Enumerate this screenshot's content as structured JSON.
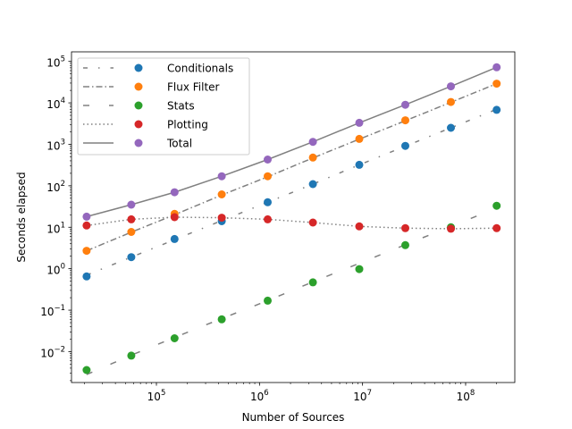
{
  "chart_data": {
    "type": "scatter",
    "title": "",
    "xlabel": "Number of Sources",
    "ylabel": "Seconds elapsed",
    "xscale": "log",
    "yscale": "log",
    "xlim": [
      15000,
      300000000
    ],
    "ylim": [
      0.0018,
      170000
    ],
    "grid": false,
    "legend_position": "top-left",
    "x": [
      21000,
      57000,
      150000,
      430000,
      1200000,
      3300000,
      9300000,
      26000000,
      72000000,
      200000000
    ],
    "series": [
      {
        "name": "Conditionals",
        "color": "#1f77b4",
        "values": [
          0.65,
          1.9,
          5.2,
          14,
          40,
          110,
          320,
          920,
          2500,
          6800
        ],
        "fit": {
          "values": [
            0.7,
            1.9,
            5.0,
            14.5,
            40,
            110,
            320,
            900,
            2500,
            7000
          ],
          "style": "dashdotdot"
        }
      },
      {
        "name": "Flux Filter",
        "color": "#ff7f0e",
        "values": [
          2.7,
          7.7,
          21,
          62,
          170,
          480,
          1350,
          3800,
          10500,
          29000
        ],
        "fit": {
          "values": [
            2.7,
            7.6,
            20,
            60,
            165,
            470,
            1330,
            3700,
            10300,
            29000
          ],
          "style": "dashdot"
        }
      },
      {
        "name": "Stats",
        "color": "#2ca02c",
        "values": [
          0.0036,
          0.008,
          0.021,
          0.06,
          0.17,
          0.47,
          0.98,
          3.7,
          10,
          33
        ],
        "fit": {
          "values": [
            0.0028,
            0.0082,
            0.022,
            0.063,
            0.17,
            0.48,
            1.35,
            3.8,
            10.5,
            29
          ],
          "style": "dashed"
        }
      },
      {
        "name": "Plotting",
        "color": "#d62728",
        "values": [
          11,
          15.5,
          17.5,
          17,
          15.5,
          13,
          10.5,
          9.5,
          9.2,
          9.5
        ],
        "fit": {
          "values": [
            11,
            15.5,
            17.5,
            17,
            15.5,
            13,
            10.5,
            9.5,
            9.2,
            9.5
          ],
          "style": "dotted"
        }
      },
      {
        "name": "Total",
        "color": "#9467bd",
        "values": [
          18,
          35,
          70,
          170,
          430,
          1150,
          3300,
          9000,
          25000,
          72000
        ],
        "fit": {
          "values": [
            18,
            35,
            70,
            170,
            430,
            1150,
            3300,
            9000,
            25000,
            72000
          ],
          "style": "solid"
        }
      }
    ],
    "x_tick_values": [
      100000,
      1000000,
      10000000,
      100000000
    ],
    "x_tick_labels": [
      [
        "10",
        "5"
      ],
      [
        "10",
        "6"
      ],
      [
        "10",
        "7"
      ],
      [
        "10",
        "8"
      ]
    ],
    "y_tick_values": [
      0.01,
      0.1,
      1,
      10,
      100,
      1000,
      10000,
      100000
    ],
    "y_tick_labels": [
      [
        "10",
        "−2"
      ],
      [
        "10",
        "−1"
      ],
      [
        "10",
        "0"
      ],
      [
        "10",
        "1"
      ],
      [
        "10",
        "2"
      ],
      [
        "10",
        "3"
      ],
      [
        "10",
        "4"
      ],
      [
        "10",
        "5"
      ]
    ],
    "fit_line_color": "#808080"
  }
}
